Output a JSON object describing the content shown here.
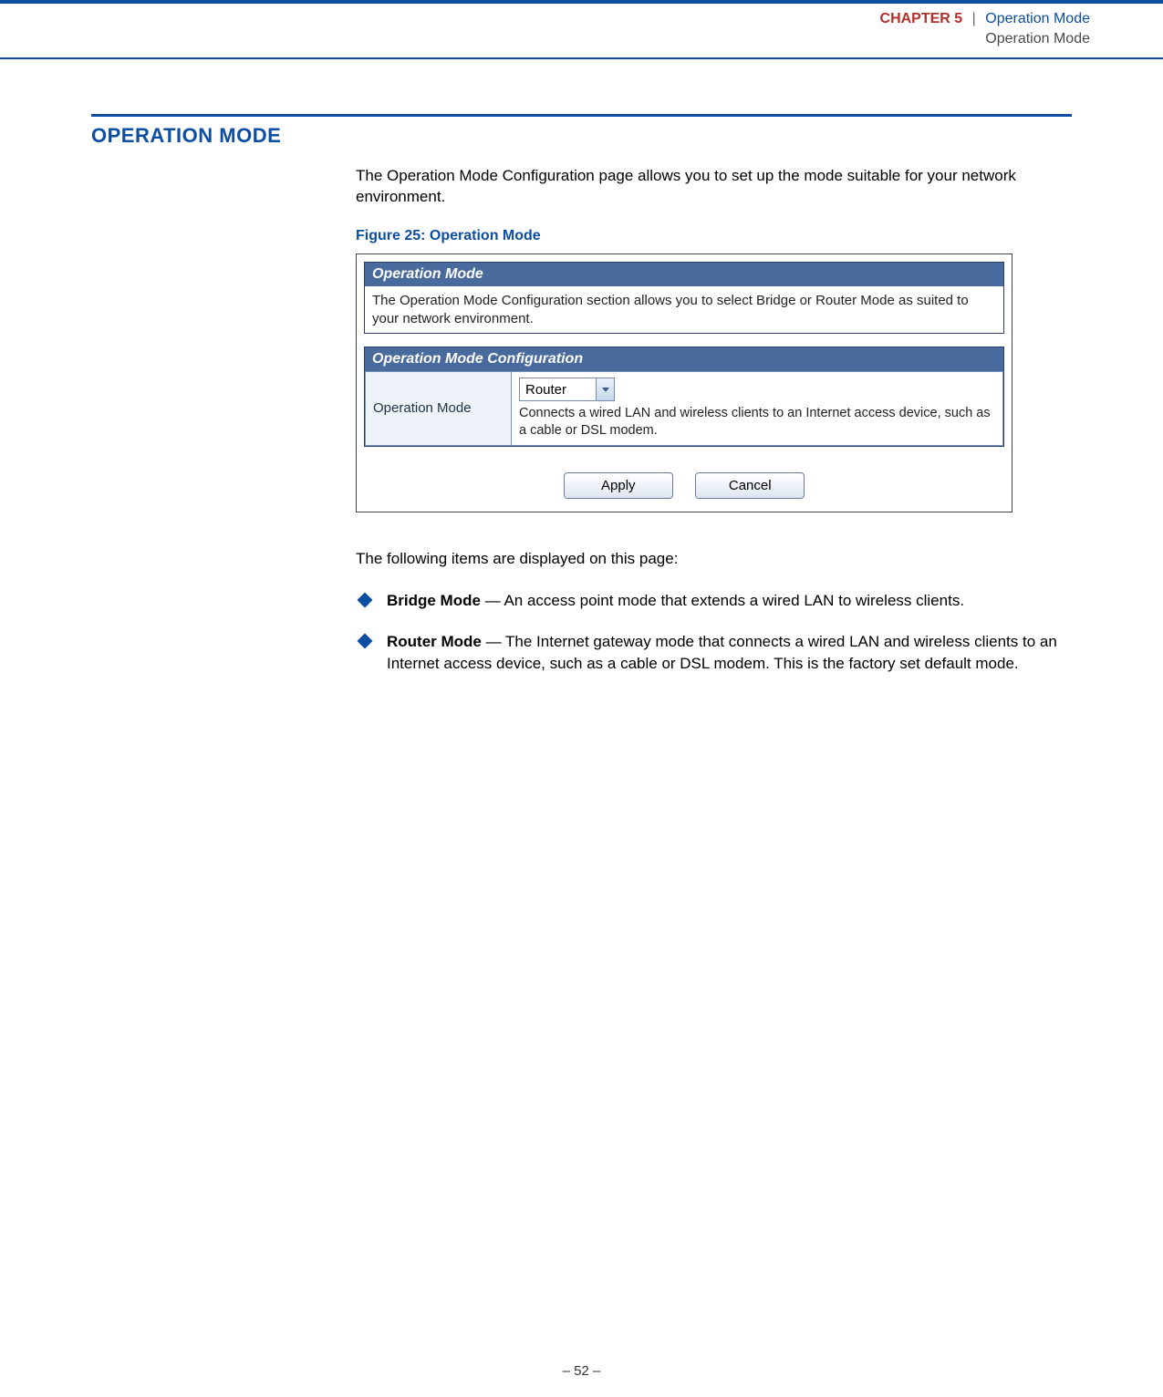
{
  "colors": {
    "brand_blue": "#0b4ea2",
    "brand_red": "#b23028",
    "panel_header_bg": "#486a9c",
    "panel_border": "#2c3e6a",
    "table_border": "#7a92b8",
    "label_cell_bg": "#eef3fa"
  },
  "header": {
    "chapter_label": "CHAPTER 5",
    "separator": "|",
    "title": "Operation Mode",
    "subtitle": "Operation Mode"
  },
  "section": {
    "heading": "OPERATION MODE",
    "intro": "The Operation Mode Configuration page allows you to set up the mode suitable for your network environment.",
    "figure_caption": "Figure 25:  Operation Mode",
    "items_intro": "The following items are displayed on this page:"
  },
  "figure": {
    "panel1": {
      "title": "Operation Mode",
      "body": "The Operation Mode Configuration section allows you to select Bridge or Router Mode as suited to your network environment."
    },
    "panel2": {
      "title": "Operation Mode Configuration",
      "row_label": "Operation Mode",
      "select_value": "Router",
      "select_description": "Connects a wired LAN and wireless clients to an Internet access device, such as a cable or DSL modem."
    },
    "buttons": {
      "apply": "Apply",
      "cancel": "Cancel"
    }
  },
  "bullets": [
    {
      "term": "Bridge Mode",
      "text": " — An access point mode that extends a wired LAN to wireless clients."
    },
    {
      "term": "Router Mode",
      "text": " — The Internet gateway mode that connects a wired LAN and wireless clients to an Internet access device, such as a cable or DSL modem. This is the factory set default mode."
    }
  ],
  "footer": {
    "page": "–  52  –"
  }
}
